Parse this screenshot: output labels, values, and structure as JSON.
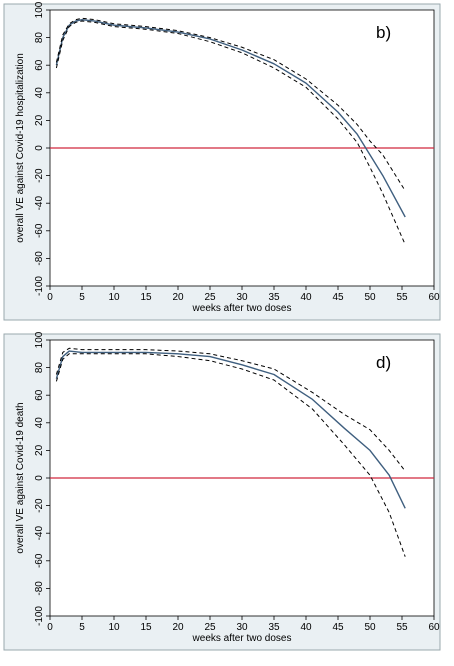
{
  "colors": {
    "panel_bg": "#eaf0f3",
    "plot_bg": "#ffffff",
    "panel_border": "#9aa8ae",
    "axis": "#000000",
    "estimate_line": "#3f5f7f",
    "ci_line": "#000000",
    "reference_line": "#d0273f"
  },
  "chart_data": [
    {
      "type": "line",
      "panel_label": "b)",
      "xlabel": "weeks after two doses",
      "ylabel": "overall VE against Covid-19 hospitalization",
      "xlim": [
        0,
        60
      ],
      "ylim": [
        -100,
        100
      ],
      "xticks": [
        "0",
        "5",
        "10",
        "15",
        "20",
        "25",
        "30",
        "35",
        "40",
        "45",
        "50",
        "55",
        "60"
      ],
      "yticks": [
        "100",
        "80",
        "60",
        "40",
        "20",
        "0",
        "-20",
        "-40",
        "-60",
        "-80",
        "-100"
      ],
      "reference_line_y": 0,
      "grid": false,
      "series": [
        {
          "style": "solid",
          "points": [
            [
              1,
              60
            ],
            [
              2,
              80
            ],
            [
              3,
              89
            ],
            [
              4,
              92
            ],
            [
              5,
              93
            ],
            [
              7,
              92
            ],
            [
              10,
              89
            ],
            [
              15,
              87
            ],
            [
              20,
              84
            ],
            [
              25,
              79
            ],
            [
              30,
              71
            ],
            [
              35,
              61
            ],
            [
              40,
              47
            ],
            [
              45,
              26
            ],
            [
              48,
              10
            ],
            [
              50,
              -5
            ],
            [
              52,
              -20
            ],
            [
              55.5,
              -50
            ]
          ]
        },
        {
          "style": "dashed",
          "points": [
            [
              1,
              62
            ],
            [
              2,
              82
            ],
            [
              3,
              90
            ],
            [
              4,
              93
            ],
            [
              5,
              94
            ],
            [
              7,
              93
            ],
            [
              10,
              90
            ],
            [
              15,
              88
            ],
            [
              20,
              85
            ],
            [
              25,
              80
            ],
            [
              30,
              73
            ],
            [
              35,
              64
            ],
            [
              40,
              50
            ],
            [
              45,
              31
            ],
            [
              48,
              17
            ],
            [
              50,
              5
            ],
            [
              52,
              -5
            ],
            [
              55.5,
              -31
            ]
          ]
        },
        {
          "style": "dashed",
          "points": [
            [
              1,
              58
            ],
            [
              2,
              78
            ],
            [
              3,
              88
            ],
            [
              4,
              91
            ],
            [
              5,
              92
            ],
            [
              7,
              91
            ],
            [
              10,
              88
            ],
            [
              15,
              86
            ],
            [
              20,
              83
            ],
            [
              25,
              77
            ],
            [
              30,
              69
            ],
            [
              35,
              58
            ],
            [
              40,
              44
            ],
            [
              45,
              21
            ],
            [
              48,
              4
            ],
            [
              50,
              -14
            ],
            [
              52,
              -33
            ],
            [
              55.5,
              -70
            ]
          ]
        }
      ]
    },
    {
      "type": "line",
      "panel_label": "d)",
      "xlabel": "weeks after two doses",
      "ylabel": "overall VE against Covid-19 death",
      "xlim": [
        0,
        60
      ],
      "ylim": [
        -100,
        100
      ],
      "xticks": [
        "0",
        "5",
        "10",
        "15",
        "20",
        "25",
        "30",
        "35",
        "40",
        "45",
        "50",
        "55",
        "60"
      ],
      "yticks": [
        "100",
        "80",
        "60",
        "40",
        "20",
        "0",
        "-20",
        "-40",
        "-60",
        "-80",
        "-100"
      ],
      "reference_line_y": 0,
      "grid": false,
      "series": [
        {
          "style": "solid",
          "points": [
            [
              1,
              72
            ],
            [
              2,
              88
            ],
            [
              3,
              92
            ],
            [
              5,
              91
            ],
            [
              10,
              91
            ],
            [
              15,
              91
            ],
            [
              20,
              90
            ],
            [
              25,
              88
            ],
            [
              30,
              82
            ],
            [
              35,
              75
            ],
            [
              41,
              57
            ],
            [
              46,
              36
            ],
            [
              50,
              20
            ],
            [
              53,
              2
            ],
            [
              55.5,
              -22
            ]
          ]
        },
        {
          "style": "dashed",
          "points": [
            [
              1,
              75
            ],
            [
              2,
              91
            ],
            [
              3,
              94
            ],
            [
              5,
              93
            ],
            [
              10,
              93
            ],
            [
              15,
              93
            ],
            [
              20,
              92
            ],
            [
              25,
              90
            ],
            [
              30,
              85
            ],
            [
              35,
              79
            ],
            [
              41,
              62
            ],
            [
              46,
              46
            ],
            [
              50,
              35
            ],
            [
              53,
              20
            ],
            [
              55.5,
              5
            ]
          ]
        },
        {
          "style": "dashed",
          "points": [
            [
              1,
              70
            ],
            [
              2,
              86
            ],
            [
              3,
              90
            ],
            [
              5,
              90
            ],
            [
              10,
              90
            ],
            [
              15,
              90
            ],
            [
              20,
              88
            ],
            [
              25,
              85
            ],
            [
              30,
              79
            ],
            [
              35,
              71
            ],
            [
              41,
              50
            ],
            [
              46,
              24
            ],
            [
              50,
              2
            ],
            [
              53,
              -25
            ],
            [
              55.5,
              -57
            ]
          ]
        }
      ]
    }
  ]
}
